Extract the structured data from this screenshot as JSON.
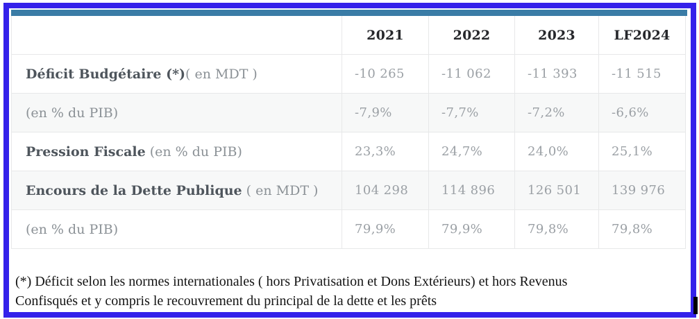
{
  "frame": {
    "border_color": "#3421ea",
    "accent_bar_color": "#3a7ca6",
    "caret_color": "#000000"
  },
  "table": {
    "columns": [
      "",
      "2021",
      "2022",
      "2023",
      "LF2024"
    ],
    "rows": [
      {
        "label_bold": "Déficit Budgétaire (*)",
        "label_normal": "( en MDT )",
        "values": [
          "-10 265",
          "-11 062",
          "-11 393",
          "-11 515"
        ]
      },
      {
        "label_bold": "",
        "label_normal": "(en % du PIB)",
        "values": [
          "-7,9%",
          "-7,7%",
          "-7,2%",
          "-6,6%"
        ]
      },
      {
        "label_bold": "Pression Fiscale",
        "label_normal": " (en % du PIB)",
        "values": [
          "23,3%",
          "24,7%",
          "24,0%",
          "25,1%"
        ]
      },
      {
        "label_bold": "Encours de la Dette Publique",
        "label_normal": " ( en MDT )",
        "values": [
          "104 298",
          "114 896",
          "126 501",
          "139 976"
        ]
      },
      {
        "label_bold": "",
        "label_normal": "(en % du PIB)",
        "values": [
          "79,9%",
          "79,9%",
          "79,8%",
          "79,8%"
        ]
      }
    ]
  },
  "footnote": {
    "lines": [
      "(*) Déficit selon les normes internationales ( hors Privatisation et Dons Extérieurs) et hors Revenus",
      "Confisqués et y compris le recouvrement du principal de la dette et les prêts"
    ]
  }
}
